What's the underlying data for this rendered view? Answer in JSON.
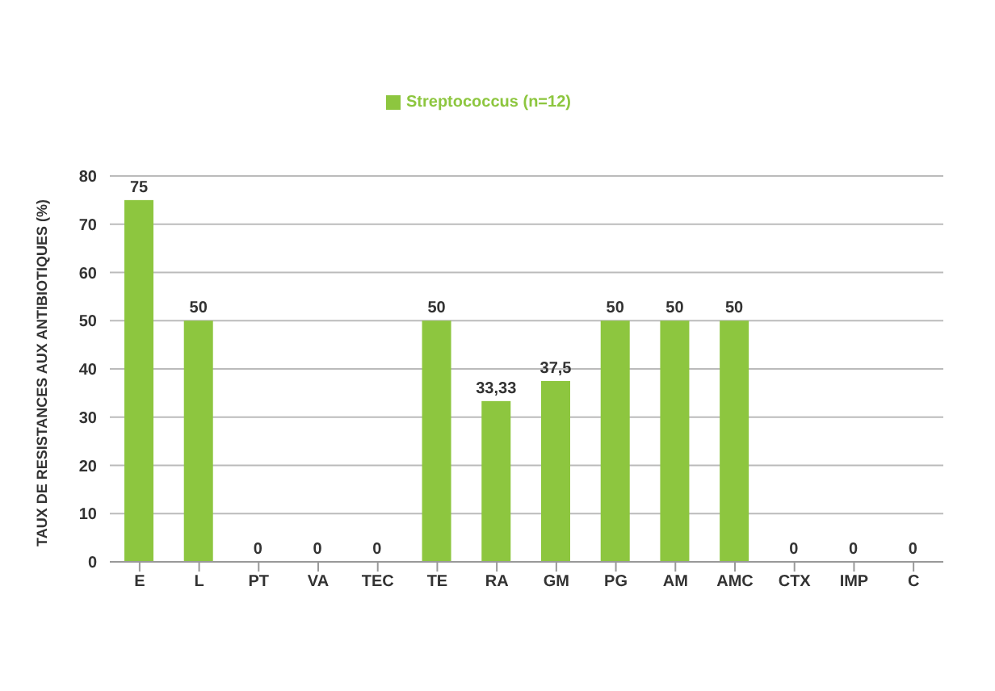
{
  "chart_data": {
    "type": "bar",
    "ylabel": "TAUX DE RESISTANCES AUX ANTIBIOTIQUES (%)",
    "categories": [
      "E",
      "L",
      "PT",
      "VA",
      "TEC",
      "TE",
      "RA",
      "GM",
      "PG",
      "AM",
      "AMC",
      "CTX",
      "IMP",
      "C"
    ],
    "series": [
      {
        "name": "Streptococcus (n=12)",
        "color": "#8dc63f",
        "values": [
          75,
          50,
          0,
          0,
          0,
          50,
          33.33,
          37.5,
          50,
          50,
          50,
          0,
          0,
          0
        ],
        "value_labels": [
          "75",
          "50",
          "0",
          "0",
          "0",
          "50",
          "33,33",
          "37,5",
          "50",
          "50",
          "50",
          "0",
          "0",
          "0"
        ]
      }
    ],
    "ylim": [
      0,
      80
    ],
    "yticks": [
      0,
      10,
      20,
      30,
      40,
      50,
      60,
      70,
      80
    ],
    "grid": "y",
    "legend": "top"
  }
}
